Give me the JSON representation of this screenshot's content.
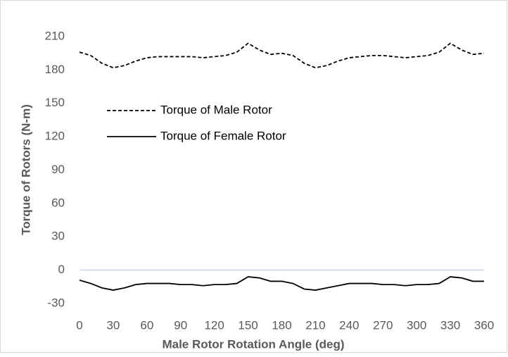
{
  "chart_data": {
    "type": "line",
    "x_label": "Male Rotor Rotation Angle (deg)",
    "y_label": "Torque of Rotors (N-m)",
    "x": [
      0,
      10,
      20,
      30,
      40,
      50,
      60,
      70,
      80,
      90,
      100,
      110,
      120,
      130,
      140,
      150,
      160,
      170,
      180,
      190,
      200,
      210,
      220,
      230,
      240,
      250,
      260,
      270,
      280,
      290,
      300,
      310,
      320,
      330,
      340,
      350,
      360
    ],
    "series": [
      {
        "name": "Torque of Male Rotor",
        "color": "#000000",
        "line_style": "dashed",
        "values": [
          196,
          193,
          186,
          182,
          184,
          188,
          191,
          192,
          192,
          192,
          192,
          191,
          192,
          193,
          196,
          204,
          198,
          194,
          195,
          193,
          186,
          182,
          184,
          188,
          191,
          192,
          193,
          193,
          192,
          191,
          192,
          193,
          196,
          204,
          198,
          194,
          195
        ]
      },
      {
        "name": "Torque of Female Rotor",
        "color": "#000000",
        "line_style": "solid",
        "values": [
          -9,
          -12,
          -16,
          -18,
          -16,
          -13,
          -12,
          -12,
          -12,
          -13,
          -13,
          -14,
          -13,
          -13,
          -12,
          -6,
          -7,
          -10,
          -10,
          -12,
          -17,
          -18,
          -16,
          -14,
          -12,
          -12,
          -12,
          -13,
          -13,
          -14,
          -13,
          -13,
          -12,
          -6,
          -7,
          -10,
          -10
        ]
      }
    ],
    "xlim": [
      0,
      360
    ],
    "xticks": [
      0,
      30,
      60,
      90,
      120,
      150,
      180,
      210,
      240,
      270,
      300,
      330,
      360
    ],
    "ylim": [
      -30,
      210
    ],
    "yticks": [
      -30,
      0,
      30,
      60,
      90,
      120,
      150,
      180,
      210
    ],
    "zero_line": true,
    "grid": false,
    "legend": "left"
  }
}
